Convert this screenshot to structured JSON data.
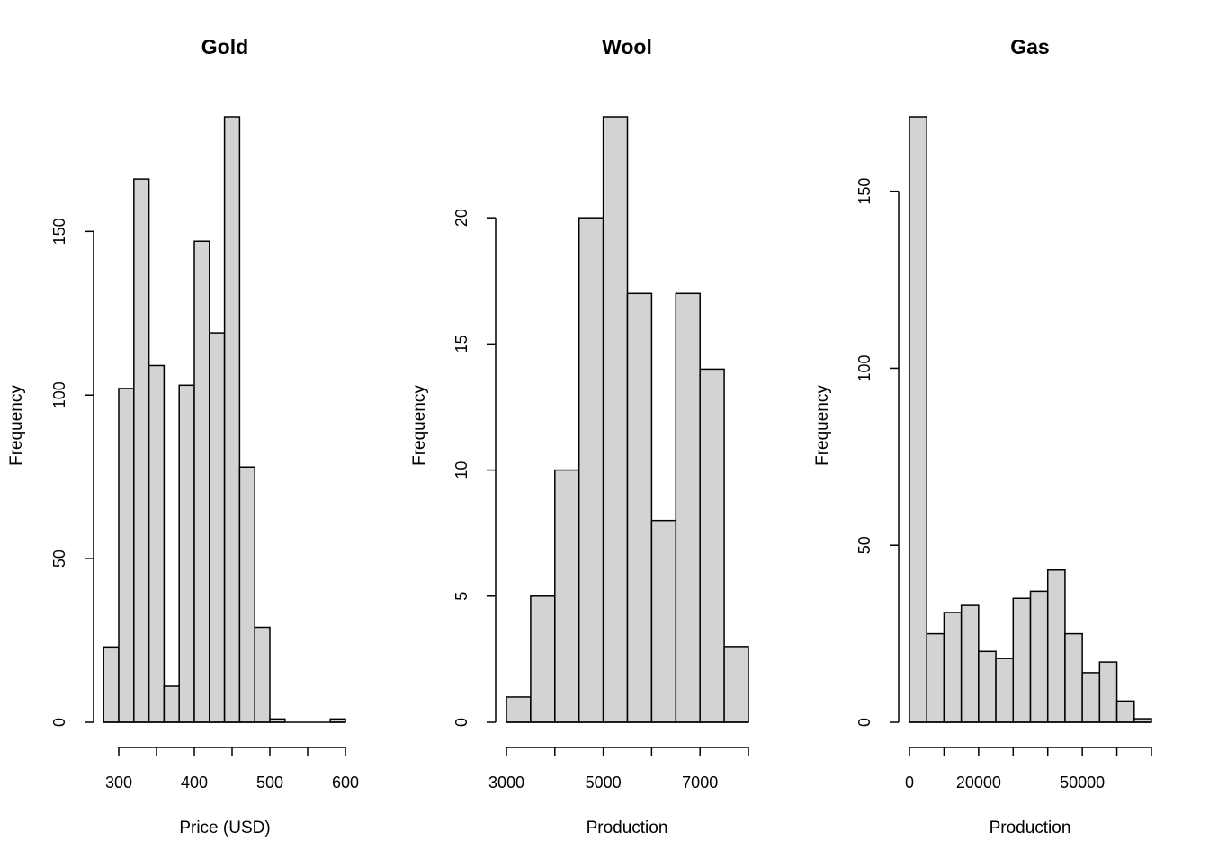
{
  "chart_data": [
    {
      "type": "bar",
      "title": "Gold",
      "xlabel": "Price (USD)",
      "ylabel": "Frequency",
      "x_ticks": [
        300,
        400,
        500,
        600
      ],
      "x_minor_ticks": [
        300,
        350,
        400,
        450,
        500,
        550,
        600
      ],
      "x_tick_labels": [
        "300",
        "400",
        "500",
        "600"
      ],
      "y_ticks": [
        0,
        50,
        100,
        150
      ],
      "y_tick_labels": [
        "0",
        "50",
        "100",
        "150"
      ],
      "ylim": [
        0,
        185
      ],
      "bins": [
        {
          "x0": 280,
          "x1": 300,
          "count": 23
        },
        {
          "x0": 300,
          "x1": 320,
          "count": 102
        },
        {
          "x0": 320,
          "x1": 340,
          "count": 166
        },
        {
          "x0": 340,
          "x1": 360,
          "count": 109
        },
        {
          "x0": 360,
          "x1": 380,
          "count": 11
        },
        {
          "x0": 380,
          "x1": 400,
          "count": 103
        },
        {
          "x0": 400,
          "x1": 420,
          "count": 147
        },
        {
          "x0": 420,
          "x1": 440,
          "count": 119
        },
        {
          "x0": 440,
          "x1": 460,
          "count": 185
        },
        {
          "x0": 460,
          "x1": 480,
          "count": 78
        },
        {
          "x0": 480,
          "x1": 500,
          "count": 29
        },
        {
          "x0": 500,
          "x1": 520,
          "count": 1
        },
        {
          "x0": 520,
          "x1": 540,
          "count": 0
        },
        {
          "x0": 540,
          "x1": 560,
          "count": 0
        },
        {
          "x0": 560,
          "x1": 580,
          "count": 0
        },
        {
          "x0": 580,
          "x1": 600,
          "count": 1
        }
      ]
    },
    {
      "type": "bar",
      "title": "Wool",
      "xlabel": "Production",
      "ylabel": "Frequency",
      "x_ticks": [
        3000,
        5000,
        7000
      ],
      "x_minor_ticks": [
        3000,
        4000,
        5000,
        6000,
        7000,
        8000
      ],
      "x_tick_labels": [
        "3000",
        "5000",
        "7000"
      ],
      "y_ticks": [
        0,
        5,
        10,
        15,
        20
      ],
      "y_tick_labels": [
        "0",
        "5",
        "10",
        "15",
        "20"
      ],
      "ylim": [
        0,
        24
      ],
      "bins": [
        {
          "x0": 3000,
          "x1": 3500,
          "count": 1
        },
        {
          "x0": 3500,
          "x1": 4000,
          "count": 5
        },
        {
          "x0": 4000,
          "x1": 4500,
          "count": 10
        },
        {
          "x0": 4500,
          "x1": 5000,
          "count": 20
        },
        {
          "x0": 5000,
          "x1": 5500,
          "count": 24
        },
        {
          "x0": 5500,
          "x1": 6000,
          "count": 17
        },
        {
          "x0": 6000,
          "x1": 6500,
          "count": 8
        },
        {
          "x0": 6500,
          "x1": 7000,
          "count": 17
        },
        {
          "x0": 7000,
          "x1": 7500,
          "count": 14
        },
        {
          "x0": 7500,
          "x1": 8000,
          "count": 3
        }
      ]
    },
    {
      "type": "bar",
      "title": "Gas",
      "xlabel": "Production",
      "ylabel": "Frequency",
      "x_ticks": [
        0,
        20000,
        50000
      ],
      "x_minor_ticks": [
        0,
        10000,
        20000,
        30000,
        40000,
        50000,
        60000,
        70000
      ],
      "x_tick_labels": [
        "0",
        "20000",
        "50000"
      ],
      "y_ticks": [
        0,
        50,
        100,
        150
      ],
      "y_tick_labels": [
        "0",
        "50",
        "100",
        "150"
      ],
      "ylim": [
        0,
        171
      ],
      "bins": [
        {
          "x0": 0,
          "x1": 5000,
          "count": 171
        },
        {
          "x0": 5000,
          "x1": 10000,
          "count": 25
        },
        {
          "x0": 10000,
          "x1": 15000,
          "count": 31
        },
        {
          "x0": 15000,
          "x1": 20000,
          "count": 33
        },
        {
          "x0": 20000,
          "x1": 25000,
          "count": 20
        },
        {
          "x0": 25000,
          "x1": 30000,
          "count": 18
        },
        {
          "x0": 30000,
          "x1": 35000,
          "count": 35
        },
        {
          "x0": 35000,
          "x1": 40000,
          "count": 37
        },
        {
          "x0": 40000,
          "x1": 45000,
          "count": 43
        },
        {
          "x0": 45000,
          "x1": 50000,
          "count": 25
        },
        {
          "x0": 50000,
          "x1": 55000,
          "count": 14
        },
        {
          "x0": 55000,
          "x1": 60000,
          "count": 17
        },
        {
          "x0": 60000,
          "x1": 65000,
          "count": 6
        },
        {
          "x0": 65000,
          "x1": 70000,
          "count": 1
        }
      ]
    }
  ]
}
